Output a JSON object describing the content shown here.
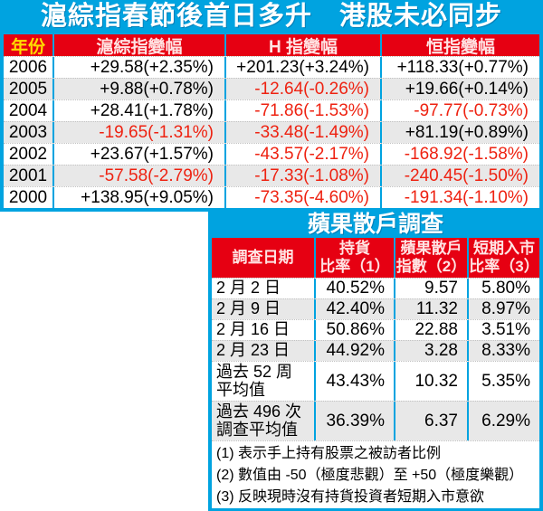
{
  "colors": {
    "accent_blue": "#00a3e0",
    "header_red": "#e60012",
    "year_header_yellow": "#ffdc00",
    "header_text_pink": "#ffe3e3",
    "negative_value_red": "#ee2211",
    "alt_row_gray": "#e8e8e8"
  },
  "chart_data": [
    {
      "type": "table",
      "title": "滬綜指春節後首日多升　港股未必同步",
      "columns": [
        "年份",
        "滬綜指變幅",
        "H 指變幅",
        "恒指變幅"
      ],
      "rows": [
        [
          "2006",
          "+29.58(+2.35%)",
          "+201.23(+3.24%)",
          "+118.33(+0.77%)"
        ],
        [
          "2005",
          "+9.88(+0.78%)",
          "-12.64(-0.26%)",
          "+19.66(+0.14%)"
        ],
        [
          "2004",
          "+28.41(+1.78%)",
          "-71.86(-1.53%)",
          "-97.77(-0.73%)"
        ],
        [
          "2003",
          "-19.65(-1.31%)",
          "-33.48(-1.49%)",
          "+81.19(+0.89%)"
        ],
        [
          "2002",
          "+23.67(+1.57%)",
          "-43.57(-2.17%)",
          "-168.92(-1.58%)"
        ],
        [
          "2001",
          "-57.58(-2.79%)",
          "-17.33(-1.08%)",
          "-240.45(-1.50%)"
        ],
        [
          "2000",
          "+138.95(+9.05%)",
          "-73.35(-4.60%)",
          "-191.34(-1.10%)"
        ]
      ]
    },
    {
      "type": "table",
      "title": "蘋果散戶調查",
      "columns": [
        "調查日期",
        "持貨\n比率（1）",
        "蘋果散戶\n指數（2）",
        "短期入市\n比率（3）"
      ],
      "rows": [
        [
          "2 月 2 日",
          "40.52%",
          "9.57",
          "5.80%"
        ],
        [
          "2 月 9 日",
          "42.40%",
          "11.32",
          "8.97%"
        ],
        [
          "2 月 16 日",
          "50.86%",
          "22.88",
          "3.51%"
        ],
        [
          "2 月 23 日",
          "44.92%",
          "3.28",
          "8.33%"
        ],
        [
          "過去 52 周\n平均值",
          "43.43%",
          "10.32",
          "5.35%"
        ],
        [
          "過去 496 次\n調查平均值",
          "36.39%",
          "6.37",
          "6.29%"
        ]
      ],
      "footnotes": [
        "(1) 表示手上持有股票之被訪者比例",
        "(2) 數值由 -50（極度悲觀）至 +50（極度樂觀）",
        "(3) 反映現時沒有持貨投資者短期入市意欲"
      ]
    }
  ]
}
